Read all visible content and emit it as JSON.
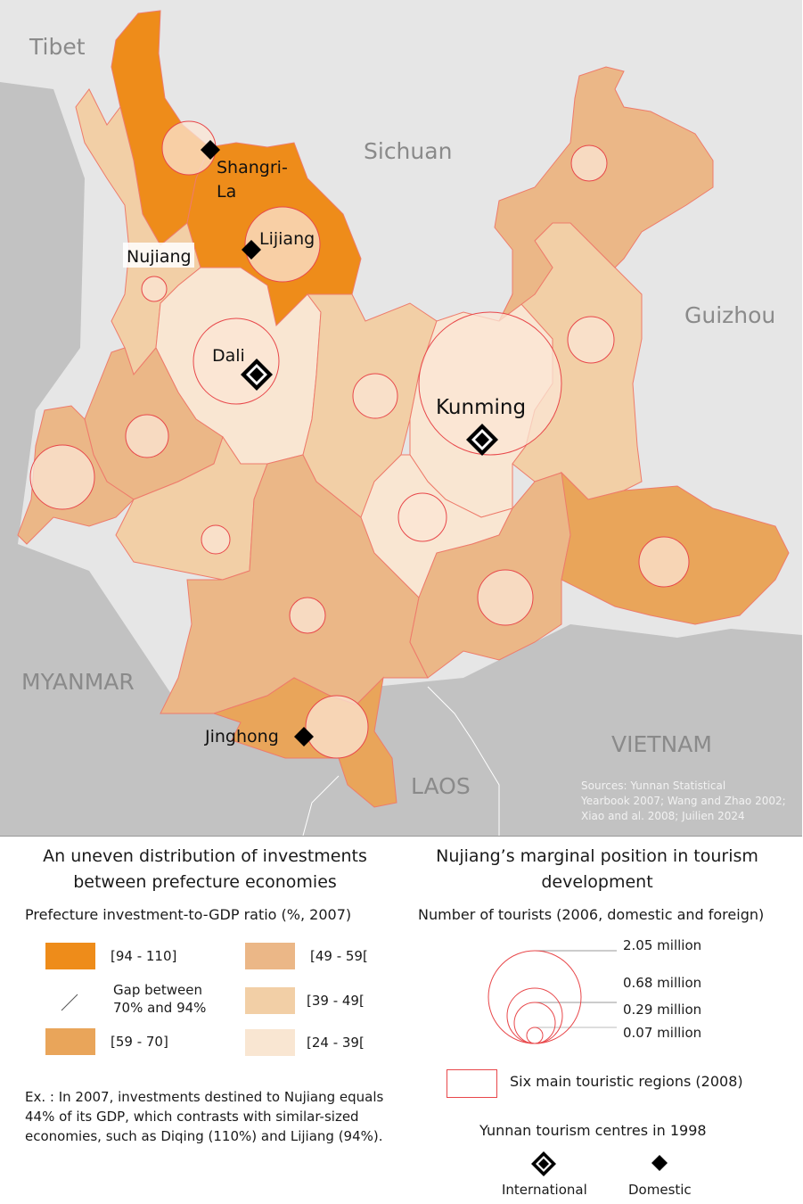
{
  "map": {
    "countries": {
      "tibet": "Tibet",
      "sichuan": "Sichuan",
      "guizhou": "Guizhou",
      "myanmar": "MYANMAR",
      "vietnam": "VIETNAM",
      "laos": "LAOS"
    },
    "places": {
      "shangrila_1": "Shangri-",
      "shangrila_2": "La",
      "lijiang": "Lijiang",
      "nujiang": "Nujiang",
      "dali": "Dali",
      "kunming": "Kunming",
      "jinghong": "Jinghong"
    },
    "sources": [
      "Sources: Yunnan Statistical",
      "Yearbook 2007; Wang and Zhao 2002;",
      "Xiao and al. 2008; Juilien 2024"
    ],
    "prefecture_fill_classes": [
      0,
      0,
      3,
      4,
      2,
      2,
      3,
      2,
      1,
      3,
      4,
      3,
      2,
      4,
      2,
      1
    ],
    "colors": {
      "class_0": "#ee8c1a",
      "class_1": "#e9a55a",
      "class_2": "#ebb787",
      "class_3": "#f2cfa6",
      "class_4": "#f9e6d2",
      "circle_stroke": "#e8474a",
      "foreign": "#c2c2c2",
      "china": "#e6e6e6"
    }
  },
  "legend_left": {
    "title": "An uneven distribution of investments between prefecture economies",
    "subtitle": "Prefecture investment-to-GDP ratio (%, 2007)",
    "classes": [
      "[94 - 110]",
      "[59 - 70]",
      "[49 - 59[",
      "[39 - 49[",
      "[24 - 39["
    ],
    "gap_1": "Gap between",
    "gap_2": "70% and 94%",
    "example": [
      "Ex. : In 2007, investments destined to Nujiang equals",
      "44% of its GDP, which contrasts with similar-sized",
      "economies, such as Diqing (110%) and Lijiang (94%)."
    ]
  },
  "legend_right": {
    "title": "Nujiang’s marginal position in tourism development",
    "subtitle": "Number of tourists (2006, domestic and foreign)",
    "sizes": [
      "2.05 million",
      "0.68 million",
      "0.29 million",
      "0.07 million"
    ],
    "regions": "Six main touristic regions (2008)",
    "centres_title": "Yunnan tourism centres in 1998",
    "international": "International",
    "domestic": "Domestic"
  }
}
